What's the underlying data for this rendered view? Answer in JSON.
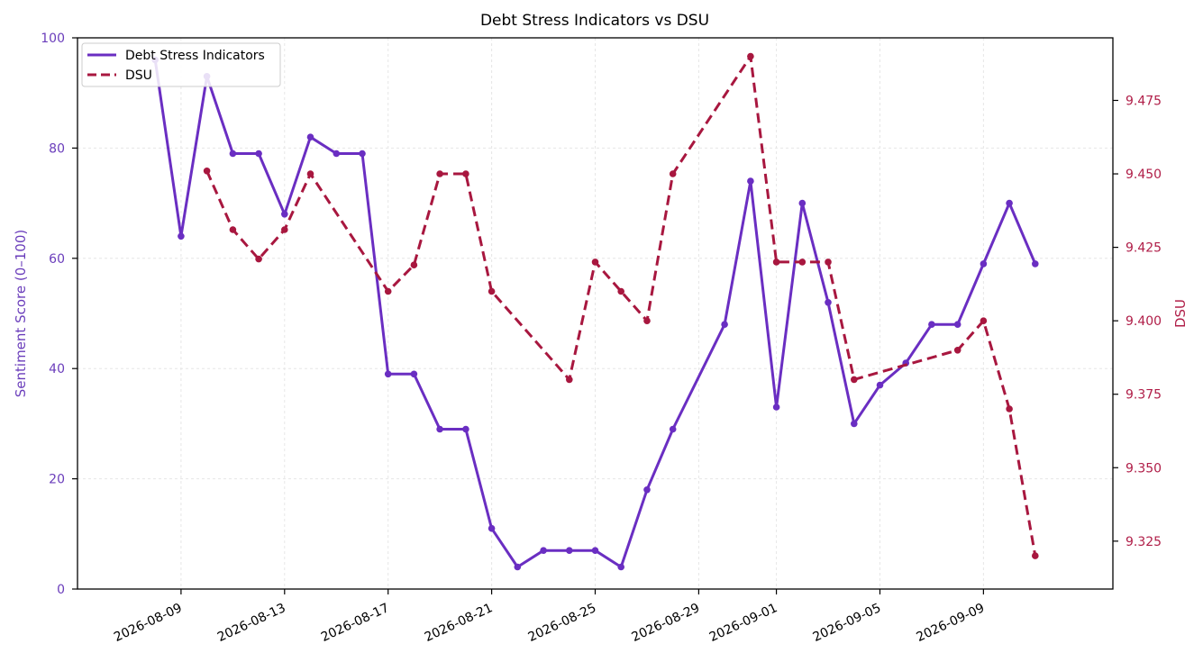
{
  "chart_data": {
    "type": "line",
    "title": "Debt Stress Indicators vs DSU",
    "xlabel": "",
    "ylabel_left": "Sentiment Score (0–100)",
    "ylabel_right": "DSU",
    "ylim_left": [
      0,
      100
    ],
    "ylim_right": [
      9.3087,
      9.4963
    ],
    "yticks_left": [
      "0",
      "20",
      "40",
      "60",
      "80",
      "100"
    ],
    "yticks_right": [
      "9.325",
      "9.350",
      "9.375",
      "9.400",
      "9.425",
      "9.450",
      "9.475"
    ],
    "xticks": [
      "2026-08-09",
      "2026-08-13",
      "2026-08-17",
      "2026-08-21",
      "2026-08-25",
      "2026-08-29",
      "2026-09-01",
      "2026-09-05",
      "2026-09-09"
    ],
    "grid": true,
    "legend_position": "top-left",
    "colors": {
      "left_axis": "#6a3dbb",
      "right_axis": "#b01e48",
      "series_1": "#6a2ec2",
      "series_2": "#a8173f"
    },
    "series": [
      {
        "name": "Debt Stress Indicators",
        "axis": "left",
        "style": "solid",
        "points": [
          [
            "2026-08-08",
            96
          ],
          [
            "2026-08-09",
            64
          ],
          [
            "2026-08-10",
            93
          ],
          [
            "2026-08-11",
            79
          ],
          [
            "2026-08-12",
            79
          ],
          [
            "2026-08-13",
            68
          ],
          [
            "2026-08-14",
            82
          ],
          [
            "2026-08-15",
            79
          ],
          [
            "2026-08-16",
            79
          ],
          [
            "2026-08-17",
            39
          ],
          [
            "2026-08-18",
            39
          ],
          [
            "2026-08-19",
            29
          ],
          [
            "2026-08-20",
            29
          ],
          [
            "2026-08-21",
            11
          ],
          [
            "2026-08-22",
            4
          ],
          [
            "2026-08-23",
            7
          ],
          [
            "2026-08-24",
            7
          ],
          [
            "2026-08-25",
            7
          ],
          [
            "2026-08-26",
            4
          ],
          [
            "2026-08-27",
            18
          ],
          [
            "2026-08-28",
            29
          ],
          [
            "2026-08-30",
            48
          ],
          [
            "2026-08-31",
            74
          ],
          [
            "2026-09-01",
            33
          ],
          [
            "2026-09-02",
            70
          ],
          [
            "2026-09-03",
            52
          ],
          [
            "2026-09-04",
            30
          ],
          [
            "2026-09-05",
            37
          ],
          [
            "2026-09-06",
            41
          ],
          [
            "2026-09-07",
            48
          ],
          [
            "2026-09-08",
            48
          ],
          [
            "2026-09-09",
            59
          ],
          [
            "2026-09-10",
            70
          ],
          [
            "2026-09-11",
            59
          ]
        ]
      },
      {
        "name": "DSU",
        "axis": "right",
        "style": "dashed",
        "points": [
          [
            "2026-08-10",
            9.451
          ],
          [
            "2026-08-11",
            9.431
          ],
          [
            "2026-08-12",
            9.421
          ],
          [
            "2026-08-13",
            9.431
          ],
          [
            "2026-08-14",
            9.45
          ],
          [
            "2026-08-17",
            9.41
          ],
          [
            "2026-08-18",
            9.419
          ],
          [
            "2026-08-19",
            9.45
          ],
          [
            "2026-08-20",
            9.45
          ],
          [
            "2026-08-21",
            9.41
          ],
          [
            "2026-08-24",
            9.38
          ],
          [
            "2026-08-25",
            9.42
          ],
          [
            "2026-08-26",
            9.41
          ],
          [
            "2026-08-27",
            9.4
          ],
          [
            "2026-08-28",
            9.45
          ],
          [
            "2026-08-31",
            9.49
          ],
          [
            "2026-09-01",
            9.42
          ],
          [
            "2026-09-02",
            9.42
          ],
          [
            "2026-09-03",
            9.42
          ],
          [
            "2026-09-04",
            9.38
          ],
          [
            "2026-09-08",
            9.39
          ],
          [
            "2026-09-09",
            9.4
          ],
          [
            "2026-09-10",
            9.37
          ],
          [
            "2026-09-11",
            9.32
          ]
        ]
      }
    ]
  }
}
